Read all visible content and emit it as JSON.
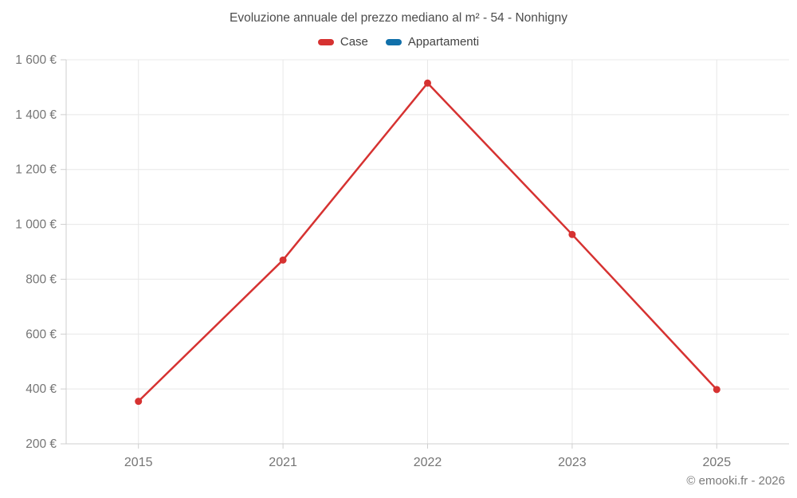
{
  "title": "Evoluzione annuale del prezzo mediano al m² - 54 - Nonhigny",
  "footer": "© emooki.fr - 2026",
  "legend": {
    "items": [
      {
        "label": "Case",
        "color": "#d63231"
      },
      {
        "label": "Appartamenti",
        "color": "#1170aa"
      }
    ]
  },
  "chart_data": {
    "type": "line",
    "title": "Evoluzione annuale del prezzo mediano al m² - 54 - Nonhigny",
    "categories": [
      "2015",
      "2021",
      "2022",
      "2023",
      "2025"
    ],
    "series": [
      {
        "name": "Case",
        "color": "#d63231",
        "values": [
          355,
          870,
          1515,
          963,
          398
        ]
      },
      {
        "name": "Appartamenti",
        "color": "#1170aa",
        "values": []
      }
    ],
    "ylim": [
      200,
      1600
    ],
    "yticks": [
      200,
      400,
      600,
      800,
      1000,
      1200,
      1400,
      1600
    ],
    "ytick_labels": [
      "200 €",
      "400 €",
      "600 €",
      "800 €",
      "1 000 €",
      "1 200 €",
      "1 400 €",
      "1 600 €"
    ],
    "xlabel": "",
    "ylabel": "",
    "grid": true,
    "legend_position": "top",
    "colors": {
      "grid": "#e8e8e8",
      "axis": "#cfcfcf",
      "label": "#757575"
    }
  }
}
